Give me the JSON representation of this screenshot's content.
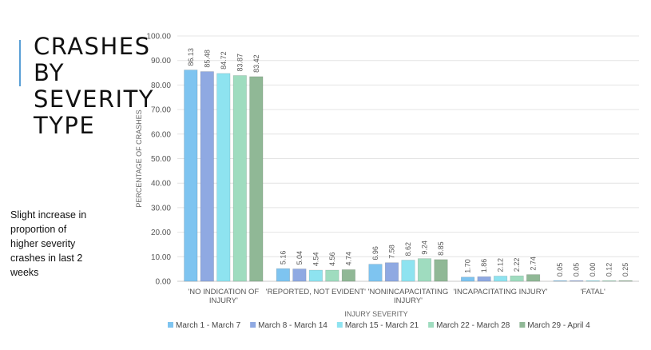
{
  "slide": {
    "title_lines": [
      "CRASHES",
      "BY",
      "SEVERITY",
      "TYPE"
    ],
    "note_lines": [
      "Slight increase in",
      "proportion of",
      "higher severity",
      "crashes in last 2",
      "weeks"
    ]
  },
  "chart_data": {
    "type": "bar",
    "xlabel": "INJURY SEVERITY",
    "ylabel": "PERCENTAGE OF CRASHES",
    "ylim": [
      0,
      100
    ],
    "yticks": [
      "0.00",
      "10.00",
      "20.00",
      "30.00",
      "40.00",
      "50.00",
      "60.00",
      "70.00",
      "80.00",
      "90.00",
      "100.00"
    ],
    "grid": true,
    "legend_position": "bottom",
    "categories": [
      [
        "'NO INDICATION OF",
        "INJURY'"
      ],
      [
        "'REPORTED, NOT EVIDENT'"
      ],
      [
        "'NONINCAPACITATING",
        "INJURY'"
      ],
      [
        "'INCAPACITATING INJURY'"
      ],
      [
        "'FATAL'"
      ]
    ],
    "series": [
      {
        "name": "March 1 - March 7",
        "color": "#7ec4f0",
        "values": [
          86.13,
          5.16,
          6.96,
          1.7,
          0.05
        ],
        "labels": [
          "86.13",
          "5.16",
          "6.96",
          "1.70",
          "0.05"
        ]
      },
      {
        "name": "March 8 - March 14",
        "color": "#8fa9e2",
        "values": [
          85.48,
          5.04,
          7.58,
          1.86,
          0.05
        ],
        "labels": [
          "85.48",
          "5.04",
          "7.58",
          "1.86",
          "0.05"
        ]
      },
      {
        "name": "March 15 - March 21",
        "color": "#8ee3f0",
        "values": [
          84.72,
          4.54,
          8.62,
          2.12,
          0.0
        ],
        "labels": [
          "84.72",
          "4.54",
          "8.62",
          "2.12",
          "0.00"
        ]
      },
      {
        "name": "March 22 - March 28",
        "color": "#9fdcbf",
        "values": [
          83.87,
          4.56,
          9.24,
          2.22,
          0.12
        ],
        "labels": [
          "83.87",
          "4.56",
          "9.24",
          "2.22",
          "0.12"
        ]
      },
      {
        "name": "March 29 - April 4",
        "color": "#90b896",
        "values": [
          83.42,
          4.74,
          8.85,
          2.74,
          0.25
        ],
        "labels": [
          "83.42",
          "4.74",
          "8.85",
          "2.74",
          "0.25"
        ]
      }
    ]
  }
}
